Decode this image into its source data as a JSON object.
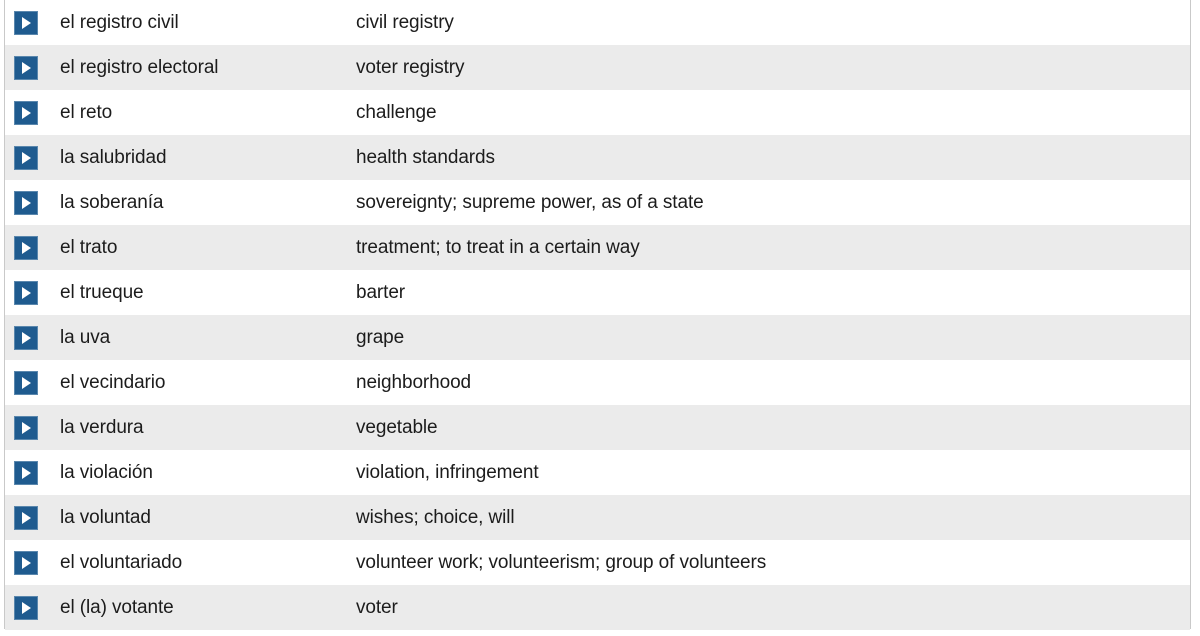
{
  "icons": {
    "play": "play-audio-icon",
    "button_color": "#1f5b8f",
    "row_alt_color": "#ebebeb"
  },
  "vocabulary": [
    {
      "term": "el registro civil",
      "definition": "civil registry"
    },
    {
      "term": "el registro electoral",
      "definition": "voter registry"
    },
    {
      "term": "el reto",
      "definition": "challenge"
    },
    {
      "term": "la salubridad",
      "definition": "health standards"
    },
    {
      "term": "la soberanía",
      "definition": "sovereignty; supreme power, as of a state"
    },
    {
      "term": "el trato",
      "definition": "treatment; to treat in a certain way"
    },
    {
      "term": "el trueque",
      "definition": "barter"
    },
    {
      "term": "la uva",
      "definition": "grape"
    },
    {
      "term": "el vecindario",
      "definition": "neighborhood"
    },
    {
      "term": "la verdura",
      "definition": "vegetable"
    },
    {
      "term": "la violación",
      "definition": "violation, infringement"
    },
    {
      "term": "la voluntad",
      "definition": "wishes; choice, will"
    },
    {
      "term": "el voluntariado",
      "definition": "volunteer work; volunteerism; group of volunteers"
    },
    {
      "term": "el (la) votante",
      "definition": "voter"
    }
  ]
}
